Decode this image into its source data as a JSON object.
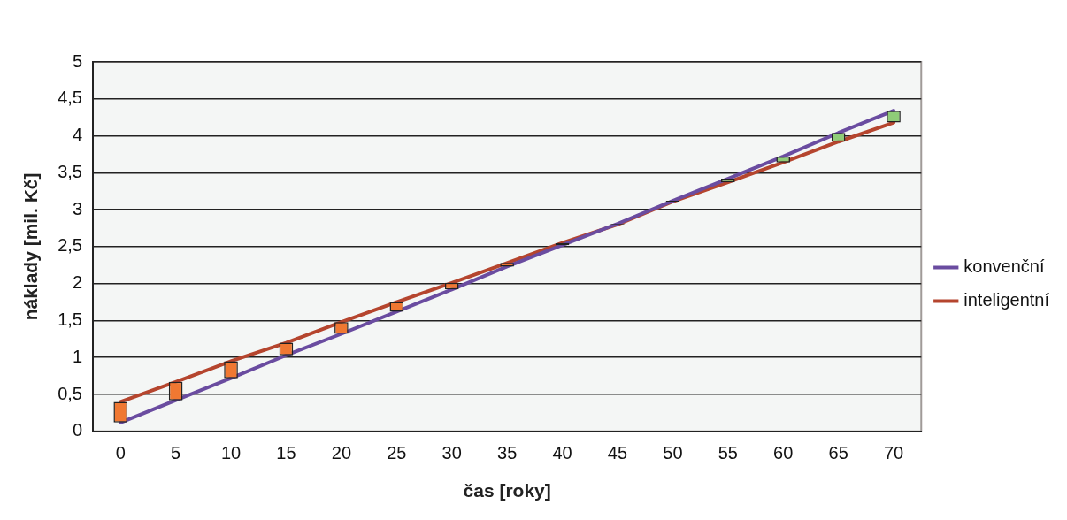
{
  "chart_data": {
    "type": "line",
    "xlabel": "čas [roky]",
    "ylabel": "náklady [mil. Kč]",
    "categories": [
      "0",
      "5",
      "10",
      "15",
      "20",
      "25",
      "30",
      "35",
      "40",
      "45",
      "50",
      "55",
      "60",
      "65",
      "70"
    ],
    "series": [
      {
        "name": "konvenční",
        "color": "#6a4ca0",
        "values": [
          0.12,
          0.42,
          0.72,
          1.03,
          1.32,
          1.62,
          1.92,
          2.23,
          2.52,
          2.81,
          3.12,
          3.42,
          3.72,
          4.04,
          4.34
        ]
      },
      {
        "name": "inteligentní",
        "color": "#b5452e",
        "values": [
          0.4,
          0.67,
          0.95,
          1.2,
          1.48,
          1.75,
          2.01,
          2.28,
          2.55,
          2.8,
          3.11,
          3.37,
          3.64,
          3.92,
          4.18
        ]
      },
      {
        "type": "bar",
        "base": [
          0.12,
          0.42,
          0.72,
          1.03,
          1.32,
          1.62,
          1.92,
          2.23,
          2.52,
          2.81,
          3.12,
          3.42,
          3.72,
          4.04,
          4.34
        ],
        "values": [
          0.28,
          0.25,
          0.23,
          0.17,
          0.16,
          0.13,
          0.09,
          0.05,
          0.03,
          -0.01,
          -0.01,
          -0.05,
          -0.08,
          -0.12,
          -0.16
        ],
        "colors": [
          "#f07832",
          "#f07832",
          "#f07832",
          "#f07832",
          "#f07832",
          "#f07832",
          "#f07832",
          "#f07832",
          "#222222",
          "#222222",
          "#222222",
          "#8fcc78",
          "#8fcc78",
          "#8fcc78",
          "#8fcc78"
        ]
      }
    ],
    "ylim": [
      0,
      5
    ],
    "yticks": [
      0,
      {
        "value": 0.5,
        "label": "0,5"
      },
      1,
      {
        "value": 1.5,
        "label": "1,5"
      },
      2,
      {
        "value": 2.5,
        "label": "2,5"
      },
      3,
      {
        "value": 3.5,
        "label": "3,5"
      },
      4,
      {
        "value": 4.5,
        "label": "4,5"
      },
      5
    ],
    "grid": "y",
    "legend": "right",
    "marker": "none",
    "line_style": "solid"
  }
}
